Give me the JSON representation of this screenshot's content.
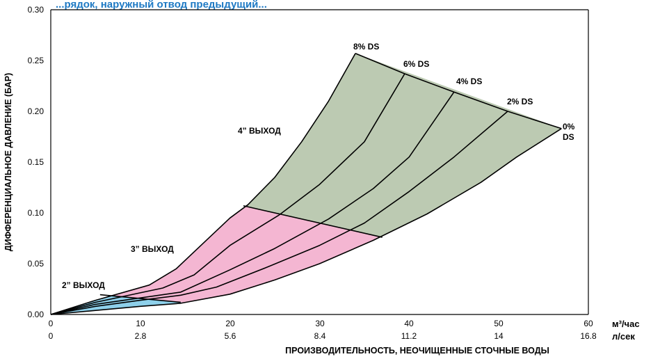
{
  "heading": "...рядок, наружный отвод предыдущий...",
  "chart_data": {
    "type": "line",
    "title": "",
    "xlabel": "ПРОИЗВОДИТЕЛЬНОСТЬ, НЕОЧИЩЕННЫЕ СТОЧНЫЕ ВОДЫ",
    "ylabel": "ДИФФЕРЕНЦИАЛЬНОЕ ДАВЛЕНИЕ (БАР)",
    "x_unit_primary": "м³/час",
    "x_unit_secondary": "л/сек",
    "xlim": [
      0,
      60
    ],
    "ylim": [
      0,
      0.3
    ],
    "x_ticks_primary": [
      "0",
      "10",
      "20",
      "30",
      "40",
      "50",
      "60"
    ],
    "x_ticks_secondary": [
      "0",
      "2.8",
      "5.6",
      "8.4",
      "11.2",
      "14",
      "16.8"
    ],
    "y_ticks": [
      "0.00",
      "0.05",
      "0.10",
      "0.15",
      "0.20",
      "0.25",
      "0.30"
    ],
    "grid": false,
    "regions": [
      {
        "label": "2” ВЫХОД",
        "color": "#8ed0ea"
      },
      {
        "label": "3” ВЫХОД",
        "color": "#f4b6d2"
      },
      {
        "label": "4” ВЫХОД",
        "color": "#bccab2"
      }
    ],
    "series": [
      {
        "name": "8% DS",
        "x": [
          0,
          5,
          11,
          14,
          17,
          20,
          22,
          25,
          28,
          31,
          34
        ],
        "y": [
          0,
          0.014,
          0.029,
          0.045,
          0.07,
          0.095,
          0.108,
          0.135,
          0.17,
          0.21,
          0.257
        ]
      },
      {
        "name": "6% DS",
        "x": [
          0,
          5,
          12.5,
          16,
          20,
          25.5,
          30,
          35,
          39.5
        ],
        "y": [
          0,
          0.012,
          0.026,
          0.039,
          0.068,
          0.098,
          0.128,
          0.17,
          0.237
        ]
      },
      {
        "name": "4% DS",
        "x": [
          0,
          5,
          14.5,
          20,
          25,
          31,
          36,
          40,
          45
        ],
        "y": [
          0,
          0.01,
          0.022,
          0.044,
          0.065,
          0.094,
          0.124,
          0.155,
          0.219
        ]
      },
      {
        "name": "2% DS",
        "x": [
          0,
          5,
          10,
          14.5,
          18.5,
          24,
          30,
          35,
          40,
          45,
          51
        ],
        "y": [
          0,
          0.008,
          0.014,
          0.019,
          0.027,
          0.046,
          0.068,
          0.09,
          0.121,
          0.155,
          0.2
        ]
      },
      {
        "name": "0% DS",
        "x": [
          0,
          5,
          10,
          14.5,
          20,
          25,
          30,
          36,
          42,
          48,
          52,
          57
        ],
        "y": [
          0,
          0.004,
          0.008,
          0.011,
          0.02,
          0.034,
          0.05,
          0.073,
          0.099,
          0.13,
          0.155,
          0.183
        ]
      }
    ],
    "annotations": [
      "8% DS",
      "6% DS",
      "4% DS",
      "2% DS",
      "0%",
      "DS",
      "2” ВЫХОД",
      "3” ВЫХОД",
      "4” ВЫХОД"
    ]
  }
}
